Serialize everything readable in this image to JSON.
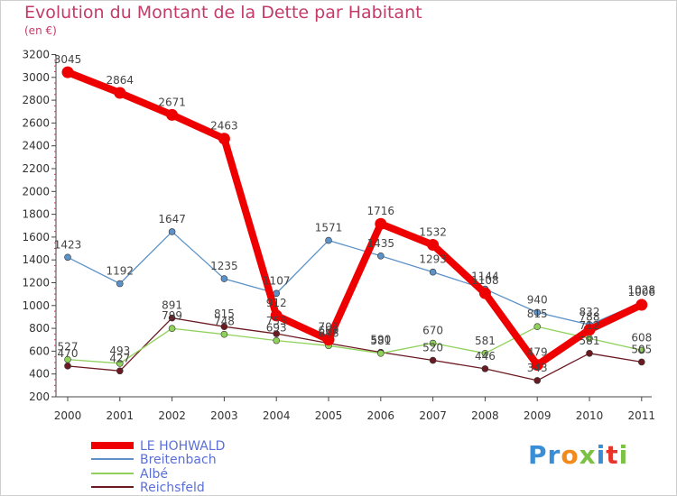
{
  "title": "Evolution du Montant de la Dette par Habitant",
  "subtitle": "(en €)",
  "brand": "Proxiti",
  "chart_data": {
    "type": "line",
    "title": "Evolution du Montant de la Dette par Habitant",
    "ylabel": "(en €)",
    "x": [
      "2000",
      "2001",
      "2002",
      "2003",
      "2004",
      "2005",
      "2006",
      "2007",
      "2008",
      "2009",
      "2010",
      "2011"
    ],
    "ylim": [
      200,
      3200
    ],
    "yticks": [
      200,
      400,
      600,
      800,
      1000,
      1200,
      1400,
      1600,
      1800,
      2000,
      2200,
      2400,
      2600,
      2800,
      3000,
      3200
    ],
    "grid": false,
    "legend_position": "bottom-left",
    "series": [
      {
        "name": "LE HOHWALD",
        "color": "#ee0000",
        "values": [
          3045,
          2864,
          2671,
          2463,
          912,
          701,
          1716,
          1532,
          1108,
          479,
          788,
          1006
        ]
      },
      {
        "name": "Breitenbach",
        "color": "#5c92c7",
        "values": [
          1423,
          1192,
          1647,
          1235,
          1107,
          1571,
          1435,
          1293,
          1144,
          940,
          832,
          1028
        ]
      },
      {
        "name": "Albé",
        "color": "#8fd15a",
        "values": [
          527,
          493,
          799,
          748,
          693,
          648,
          581,
          670,
          581,
          815,
          712,
          608
        ]
      },
      {
        "name": "Reichsfeld",
        "color": "#6b1a22",
        "values": [
          470,
          427,
          891,
          815,
          753,
          669,
          590,
          520,
          446,
          343,
          581,
          505
        ]
      }
    ]
  }
}
